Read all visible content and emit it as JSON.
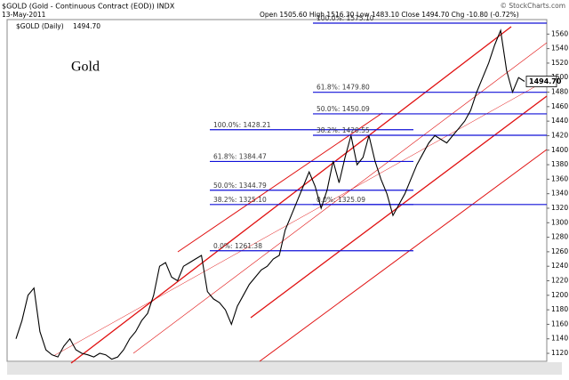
{
  "chart_data": {
    "type": "line",
    "symbol_title": "$GOLD (Gold - Continuous Contract (EOD)) INDX",
    "date": "13-May-2011",
    "ohlc": "Open 1505.60 High 1516.30 Low 1483.10 Close 1494.70 Chg -10.80 (-0.72%)",
    "credit": "© StockCharts.com",
    "title": "Gold",
    "last_label": "1494.70",
    "series": [
      {
        "name": "$GOLD (Daily)",
        "color": "#000000",
        "values": [
          1140,
          1165,
          1200,
          1210,
          1150,
          1125,
          1118,
          1115,
          1130,
          1140,
          1125,
          1120,
          1118,
          1115,
          1120,
          1118,
          1112,
          1115,
          1125,
          1140,
          1150,
          1165,
          1175,
          1200,
          1240,
          1245,
          1225,
          1220,
          1240,
          1245,
          1250,
          1255,
          1205,
          1195,
          1190,
          1180,
          1160,
          1185,
          1200,
          1215,
          1225,
          1235,
          1240,
          1250,
          1255,
          1290,
          1310,
          1330,
          1350,
          1370,
          1350,
          1320,
          1345,
          1385,
          1355,
          1390,
          1420,
          1380,
          1390,
          1420,
          1385,
          1360,
          1340,
          1310,
          1325,
          1340,
          1360,
          1380,
          1395,
          1410,
          1420,
          1415,
          1410,
          1420,
          1430,
          1440,
          1455,
          1480,
          1500,
          1520,
          1545,
          1565,
          1510,
          1480,
          1500,
          1494.7
        ]
      }
    ],
    "fib_sets": [
      {
        "levels": [
          {
            "label": "100.0%: 1428.21",
            "value": 1428.21
          },
          {
            "label": "61.8%: 1384.47",
            "value": 1384.47
          },
          {
            "label": "50.0%: 1344.79",
            "value": 1344.79
          },
          {
            "label": "38.2%: 1325.10",
            "value": 1325.1
          },
          {
            "label": "0.0%: 1261.38",
            "value": 1261.38
          }
        ]
      },
      {
        "levels": [
          {
            "label": "100.0%: 1575.10",
            "value": 1575.1
          },
          {
            "label": "61.8%: 1479.80",
            "value": 1479.8
          },
          {
            "label": "50.0%: 1450.09",
            "value": 1450.09
          },
          {
            "label": "38.2%: 1420.55",
            "value": 1420.55
          },
          {
            "label": "0.0%: 1325.09",
            "value": 1325.09
          }
        ]
      }
    ],
    "ylim": [
      1109,
      1580
    ],
    "yticks": [
      1120,
      1140,
      1160,
      1180,
      1200,
      1220,
      1240,
      1260,
      1280,
      1300,
      1320,
      1340,
      1360,
      1380,
      1400,
      1420,
      1440,
      1460,
      1480,
      1500,
      1520,
      1540,
      1560
    ]
  }
}
